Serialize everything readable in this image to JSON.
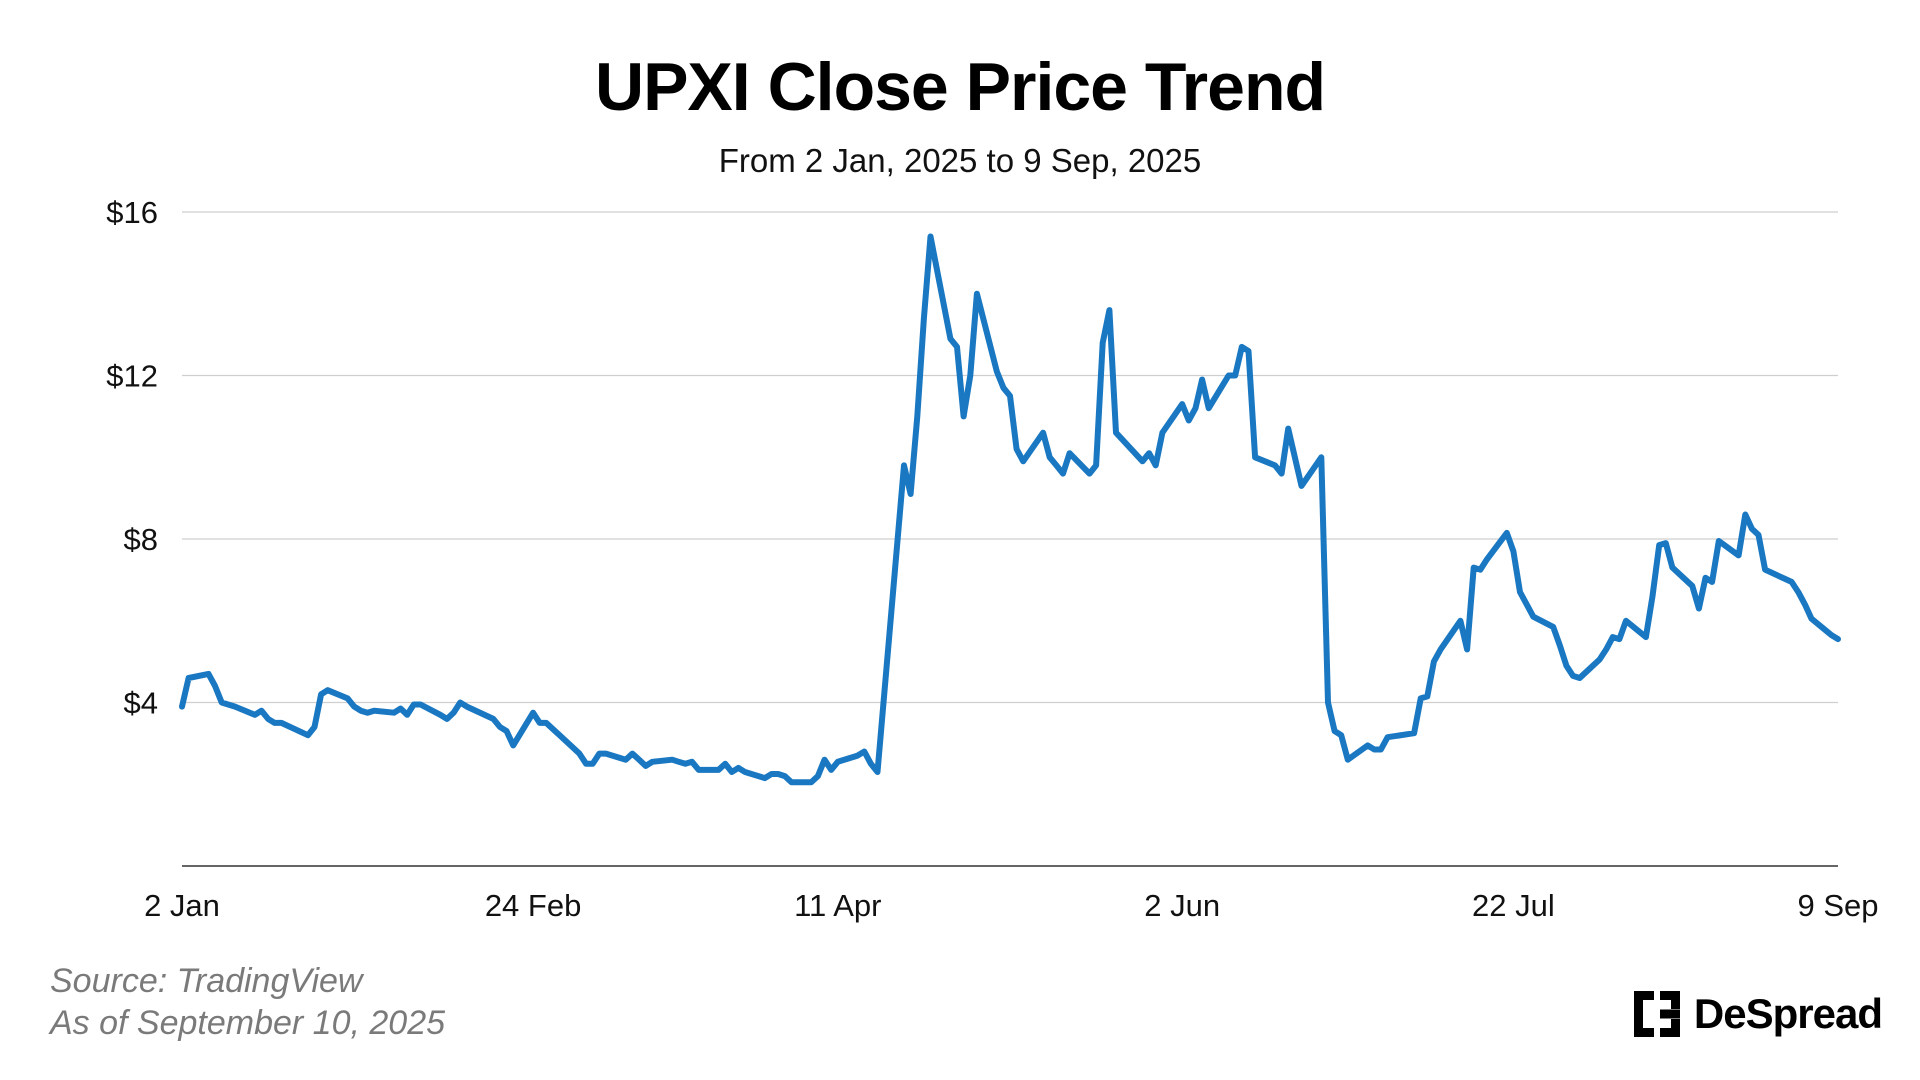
{
  "chart_data": {
    "type": "line",
    "title": "UPXI Close Price Trend",
    "subtitle": "From 2 Jan, 2025 to 9 Sep, 2025",
    "color": "#1a78c2",
    "grid": true,
    "ylim": [
      0,
      16
    ],
    "yticks": [
      4,
      8,
      12,
      16
    ],
    "ytick_labels": [
      "$4",
      "$8",
      "$12",
      "$16"
    ],
    "xlim": [
      "2025-01-02",
      "2025-09-09"
    ],
    "xticks": [
      "2025-01-02",
      "2025-02-24",
      "2025-04-11",
      "2025-06-02",
      "2025-07-22",
      "2025-09-09"
    ],
    "xtick_labels": [
      "2 Jan",
      "24 Feb",
      "11 Apr",
      "2 Jun",
      "22 Jul",
      "9 Sep"
    ],
    "series": [
      {
        "x": [
          "2025-01-02",
          "2025-01-03",
          "2025-01-06",
          "2025-01-07",
          "2025-01-08",
          "2025-01-10",
          "2025-01-13",
          "2025-01-14",
          "2025-01-15",
          "2025-01-16",
          "2025-01-17",
          "2025-01-21",
          "2025-01-22",
          "2025-01-23",
          "2025-01-24",
          "2025-01-27",
          "2025-01-28",
          "2025-01-29",
          "2025-01-30",
          "2025-01-31",
          "2025-02-03",
          "2025-02-04",
          "2025-02-05",
          "2025-02-06",
          "2025-02-07",
          "2025-02-10",
          "2025-02-11",
          "2025-02-12",
          "2025-02-13",
          "2025-02-14",
          "2025-02-18",
          "2025-02-19",
          "2025-02-20",
          "2025-02-21",
          "2025-02-24",
          "2025-02-25",
          "2025-02-26",
          "2025-02-27",
          "2025-02-28",
          "2025-03-03",
          "2025-03-04",
          "2025-03-05",
          "2025-03-06",
          "2025-03-07",
          "2025-03-10",
          "2025-03-11",
          "2025-03-12",
          "2025-03-13",
          "2025-03-14",
          "2025-03-17",
          "2025-03-18",
          "2025-03-19",
          "2025-03-20",
          "2025-03-21",
          "2025-03-24",
          "2025-03-25",
          "2025-03-26",
          "2025-03-27",
          "2025-03-28",
          "2025-03-31",
          "2025-04-01",
          "2025-04-02",
          "2025-04-03",
          "2025-04-04",
          "2025-04-07",
          "2025-04-08",
          "2025-04-09",
          "2025-04-10",
          "2025-04-11",
          "2025-04-14",
          "2025-04-15",
          "2025-04-16",
          "2025-04-17",
          "2025-04-21",
          "2025-04-22",
          "2025-04-23",
          "2025-04-24",
          "2025-04-25",
          "2025-04-28",
          "2025-04-29",
          "2025-04-30",
          "2025-05-01",
          "2025-05-02",
          "2025-05-05",
          "2025-05-06",
          "2025-05-07",
          "2025-05-08",
          "2025-05-09",
          "2025-05-12",
          "2025-05-13",
          "2025-05-14",
          "2025-05-15",
          "2025-05-16",
          "2025-05-19",
          "2025-05-20",
          "2025-05-21",
          "2025-05-22",
          "2025-05-23",
          "2025-05-27",
          "2025-05-28",
          "2025-05-29",
          "2025-05-30",
          "2025-06-02",
          "2025-06-03",
          "2025-06-04",
          "2025-06-05",
          "2025-06-06",
          "2025-06-09",
          "2025-06-10",
          "2025-06-11",
          "2025-06-12",
          "2025-06-13",
          "2025-06-16",
          "2025-06-17",
          "2025-06-18",
          "2025-06-20",
          "2025-06-23",
          "2025-06-24",
          "2025-06-25",
          "2025-06-26",
          "2025-06-27",
          "2025-06-30",
          "2025-07-01",
          "2025-07-02",
          "2025-07-03",
          "2025-07-07",
          "2025-07-08",
          "2025-07-09",
          "2025-07-10",
          "2025-07-11",
          "2025-07-14",
          "2025-07-15",
          "2025-07-16",
          "2025-07-17",
          "2025-07-18",
          "2025-07-21",
          "2025-07-22",
          "2025-07-23",
          "2025-07-24",
          "2025-07-25",
          "2025-07-28",
          "2025-07-29",
          "2025-07-30",
          "2025-07-31",
          "2025-08-01",
          "2025-08-04",
          "2025-08-05",
          "2025-08-06",
          "2025-08-07",
          "2025-08-08",
          "2025-08-11",
          "2025-08-12",
          "2025-08-13",
          "2025-08-14",
          "2025-08-15",
          "2025-08-18",
          "2025-08-19",
          "2025-08-20",
          "2025-08-21",
          "2025-08-22",
          "2025-08-25",
          "2025-08-26",
          "2025-08-27",
          "2025-08-28",
          "2025-08-29",
          "2025-09-02",
          "2025-09-03",
          "2025-09-04",
          "2025-09-05",
          "2025-09-08",
          "2025-09-09"
        ],
        "y": [
          3.9,
          4.6,
          4.7,
          4.4,
          4.0,
          3.9,
          3.7,
          3.8,
          3.6,
          3.5,
          3.5,
          3.2,
          3.4,
          4.2,
          4.3,
          4.1,
          3.9,
          3.8,
          3.75,
          3.8,
          3.75,
          3.85,
          3.7,
          3.95,
          3.95,
          3.7,
          3.6,
          3.75,
          4.0,
          3.9,
          3.6,
          3.4,
          3.3,
          2.95,
          3.75,
          3.5,
          3.5,
          3.35,
          3.2,
          2.75,
          2.5,
          2.5,
          2.75,
          2.75,
          2.6,
          2.75,
          2.6,
          2.45,
          2.55,
          2.6,
          2.55,
          2.5,
          2.55,
          2.35,
          2.35,
          2.5,
          2.3,
          2.4,
          2.3,
          2.15,
          2.25,
          2.25,
          2.2,
          2.05,
          2.05,
          2.2,
          2.6,
          2.35,
          2.55,
          2.7,
          2.8,
          2.5,
          2.3,
          9.8,
          9.1,
          11.0,
          13.4,
          15.4,
          12.9,
          12.7,
          11.0,
          12.0,
          14.0,
          12.1,
          11.7,
          11.5,
          10.2,
          9.9,
          10.6,
          10.0,
          9.8,
          9.6,
          10.1,
          9.6,
          9.8,
          12.8,
          13.6,
          10.6,
          9.9,
          10.1,
          9.8,
          10.6,
          11.3,
          10.9,
          11.2,
          11.9,
          11.2,
          12.0,
          12.0,
          12.7,
          12.6,
          10.0,
          9.8,
          9.6,
          10.7,
          9.3,
          10.0,
          4.0,
          3.3,
          3.2,
          2.6,
          2.95,
          2.85,
          2.85,
          3.15,
          3.25,
          4.1,
          4.15,
          5.0,
          5.3,
          6.0,
          5.3,
          7.3,
          7.25,
          7.5,
          8.15,
          7.7,
          6.7,
          6.4,
          6.1,
          5.85,
          5.4,
          4.9,
          4.65,
          4.6,
          5.05,
          5.3,
          5.6,
          5.55,
          6.0,
          5.6,
          6.6,
          7.85,
          7.9,
          7.3,
          6.85,
          6.3,
          7.05,
          6.95,
          7.95,
          7.6,
          8.6,
          8.25,
          8.1,
          7.25,
          6.95,
          6.7,
          6.4,
          6.05,
          5.65,
          5.55
        ]
      }
    ]
  },
  "footer": {
    "source": "Source: TradingView",
    "as_of": "As of September 10, 2025"
  },
  "brand": {
    "name": "DeSpread"
  }
}
